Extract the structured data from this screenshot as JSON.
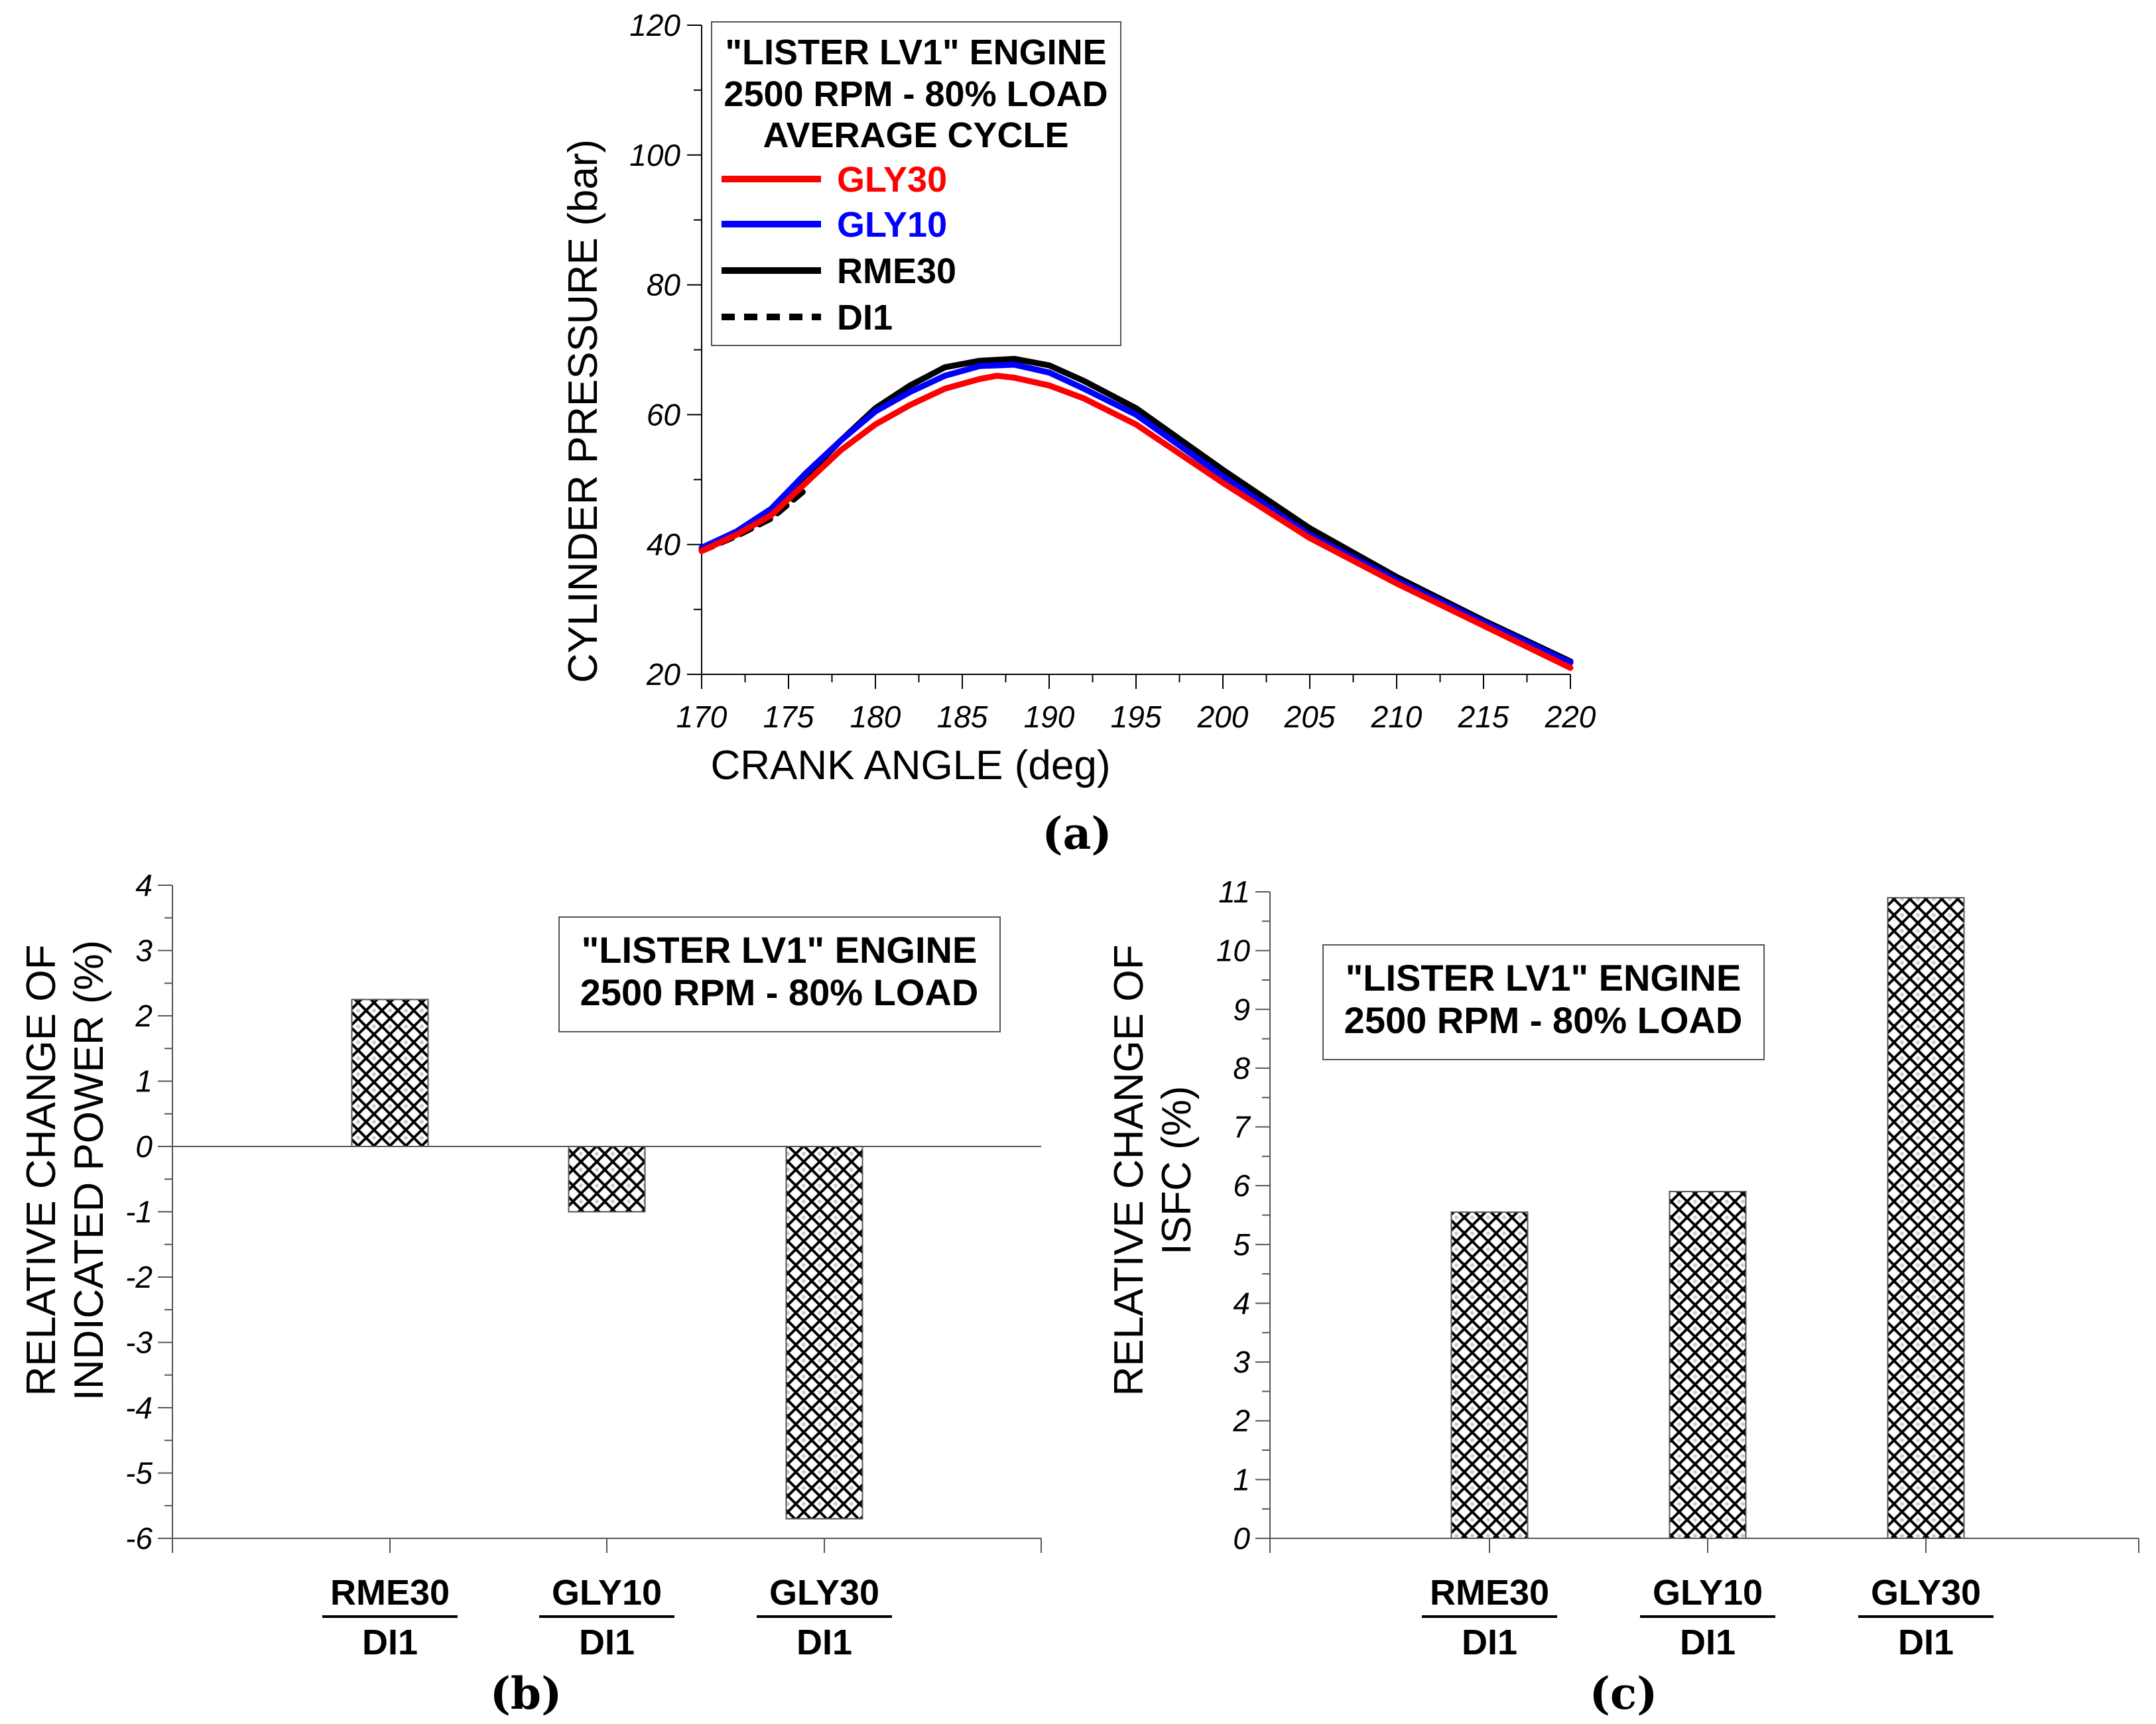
{
  "panels": {
    "a": {
      "label": "(a)"
    },
    "b": {
      "label": "(b)"
    },
    "c": {
      "label": "(c)"
    }
  },
  "chart_data": [
    {
      "id": "a",
      "type": "line",
      "title": "",
      "xlabel": "CRANK ANGLE (deg)",
      "ylabel": "CYLINDER PRESSURE (bar)",
      "xlim": [
        170,
        220
      ],
      "ylim": [
        20,
        120
      ],
      "xticks": [
        170,
        175,
        180,
        185,
        190,
        195,
        200,
        205,
        210,
        215,
        220
      ],
      "yticks": [
        20,
        40,
        60,
        80,
        100,
        120
      ],
      "grid": false,
      "legend_position": "top-left",
      "legend_title": [
        "\"LISTER LV1\" ENGINE",
        "2500 RPM - 80% LOAD",
        "AVERAGE CYCLE"
      ],
      "series": [
        {
          "name": "GLY30",
          "color": "#ff0000",
          "dash": "solid",
          "x": [
            170,
            172,
            174,
            176,
            178,
            180,
            182,
            184,
            186,
            187,
            188,
            190,
            192,
            195,
            200,
            205,
            210,
            215,
            220
          ],
          "y": [
            39,
            41.5,
            44.5,
            49.5,
            54.5,
            58.5,
            61.5,
            64,
            65.5,
            66,
            65.7,
            64.5,
            62.5,
            58.5,
            49.5,
            41,
            34,
            27.5,
            21
          ]
        },
        {
          "name": "GLY10",
          "color": "#0000ff",
          "dash": "solid",
          "x": [
            170,
            172,
            174,
            176,
            178,
            180,
            182,
            184,
            186,
            188,
            190,
            192,
            195,
            200,
            205,
            210,
            215,
            220
          ],
          "y": [
            39.5,
            42,
            45.5,
            51,
            56,
            60.5,
            63.5,
            66,
            67.5,
            67.7,
            66.5,
            64,
            60,
            50.5,
            41.5,
            34.5,
            28,
            21.8
          ]
        },
        {
          "name": "RME30",
          "color": "#000000",
          "dash": "solid",
          "x": [
            170,
            172,
            174,
            176,
            178,
            180,
            182,
            184,
            186,
            188,
            190,
            192,
            195,
            200,
            205,
            210,
            215,
            220
          ],
          "y": [
            39.2,
            41.8,
            45.2,
            50.5,
            56,
            61,
            64.5,
            67.3,
            68.3,
            68.6,
            67.6,
            65.2,
            61,
            51.5,
            42.5,
            35,
            28.3,
            22
          ]
        },
        {
          "name": "DI1",
          "color": "#000000",
          "dash": "dashed",
          "x": [
            170,
            172,
            174,
            176,
            178,
            180,
            182,
            184,
            186,
            188,
            190,
            192,
            195,
            200,
            205,
            210,
            215,
            220
          ],
          "y": [
            39,
            41.3,
            44,
            48.5,
            55,
            60.5,
            64,
            66.5,
            67.8,
            68.2,
            67.2,
            65,
            60.8,
            51.3,
            42.3,
            34.8,
            28.1,
            21.8
          ]
        }
      ]
    },
    {
      "id": "b",
      "type": "bar",
      "title": [
        "\"LISTER LV1\" ENGINE",
        "2500 RPM - 80% LOAD"
      ],
      "xlabel": "",
      "ylabel": [
        "RELATIVE CHANGE OF",
        "INDICATED POWER (%)"
      ],
      "ylim": [
        -6,
        4
      ],
      "yticks": [
        -6,
        -5,
        -4,
        -3,
        -2,
        -1,
        0,
        1,
        2,
        3,
        4
      ],
      "categories": [
        {
          "top": "RME30",
          "bottom": "DI1"
        },
        {
          "top": "GLY10",
          "bottom": "DI1"
        },
        {
          "top": "GLY30",
          "bottom": "DI1"
        }
      ],
      "values": [
        2.25,
        -1.0,
        -5.7
      ],
      "grid": false
    },
    {
      "id": "c",
      "type": "bar",
      "title": [
        "\"LISTER LV1\" ENGINE",
        "2500 RPM - 80% LOAD"
      ],
      "xlabel": "",
      "ylabel": [
        "RELATIVE CHANGE OF",
        "ISFC (%)"
      ],
      "ylim": [
        0,
        11
      ],
      "yticks": [
        0,
        1,
        2,
        3,
        4,
        5,
        6,
        7,
        8,
        9,
        10,
        11
      ],
      "categories": [
        {
          "top": "RME30",
          "bottom": "DI1"
        },
        {
          "top": "GLY10",
          "bottom": "DI1"
        },
        {
          "top": "GLY30",
          "bottom": "DI1"
        }
      ],
      "values": [
        5.55,
        5.9,
        10.9
      ],
      "grid": false
    }
  ]
}
